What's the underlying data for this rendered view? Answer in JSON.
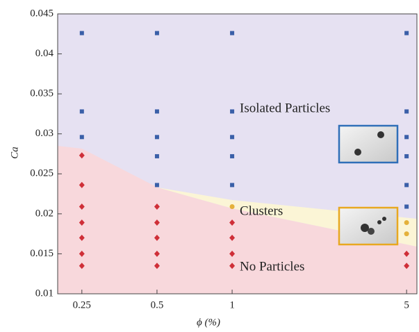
{
  "chart_data": {
    "type": "scatter",
    "xlabel": "ϕ (%)",
    "ylabel": "Ca",
    "xscale": "log",
    "xlim": [
      0.2,
      5.5
    ],
    "xticks": [
      0.25,
      0.5,
      1,
      5
    ],
    "ylim": [
      0.01,
      0.045
    ],
    "yticks": [
      0.01,
      0.015,
      0.02,
      0.025,
      0.03,
      0.035,
      0.04,
      0.045
    ],
    "series": [
      {
        "name": "Isolated Particles",
        "color": "#3a5fa8",
        "marker": "square",
        "x": [
          0.25,
          0.25,
          0.25,
          0.5,
          0.5,
          0.5,
          0.5,
          0.5,
          1,
          1,
          1,
          1,
          1,
          5,
          5,
          5,
          5,
          5,
          5
        ],
        "values": [
          0.0426,
          0.0328,
          0.0296,
          0.0426,
          0.0328,
          0.0296,
          0.0272,
          0.0236,
          0.0426,
          0.0328,
          0.0296,
          0.0272,
          0.0236,
          0.0426,
          0.0328,
          0.0296,
          0.0272,
          0.0236,
          0.0209
        ]
      },
      {
        "name": "Clusters",
        "color": "#e4b13a",
        "marker": "circle",
        "x": [
          1,
          5,
          5
        ],
        "values": [
          0.0209,
          0.0189,
          0.0175
        ]
      },
      {
        "name": "No Particles",
        "color": "#cf2f38",
        "marker": "diamond",
        "x": [
          0.25,
          0.25,
          0.25,
          0.25,
          0.25,
          0.25,
          0.25,
          0.5,
          0.5,
          0.5,
          0.5,
          0.5,
          1,
          1,
          1,
          1,
          5,
          5
        ],
        "values": [
          0.0273,
          0.0236,
          0.0209,
          0.0189,
          0.017,
          0.015,
          0.0135,
          0.0209,
          0.0189,
          0.017,
          0.015,
          0.0135,
          0.0189,
          0.017,
          0.015,
          0.0135,
          0.015,
          0.0135
        ]
      }
    ]
  }
}
